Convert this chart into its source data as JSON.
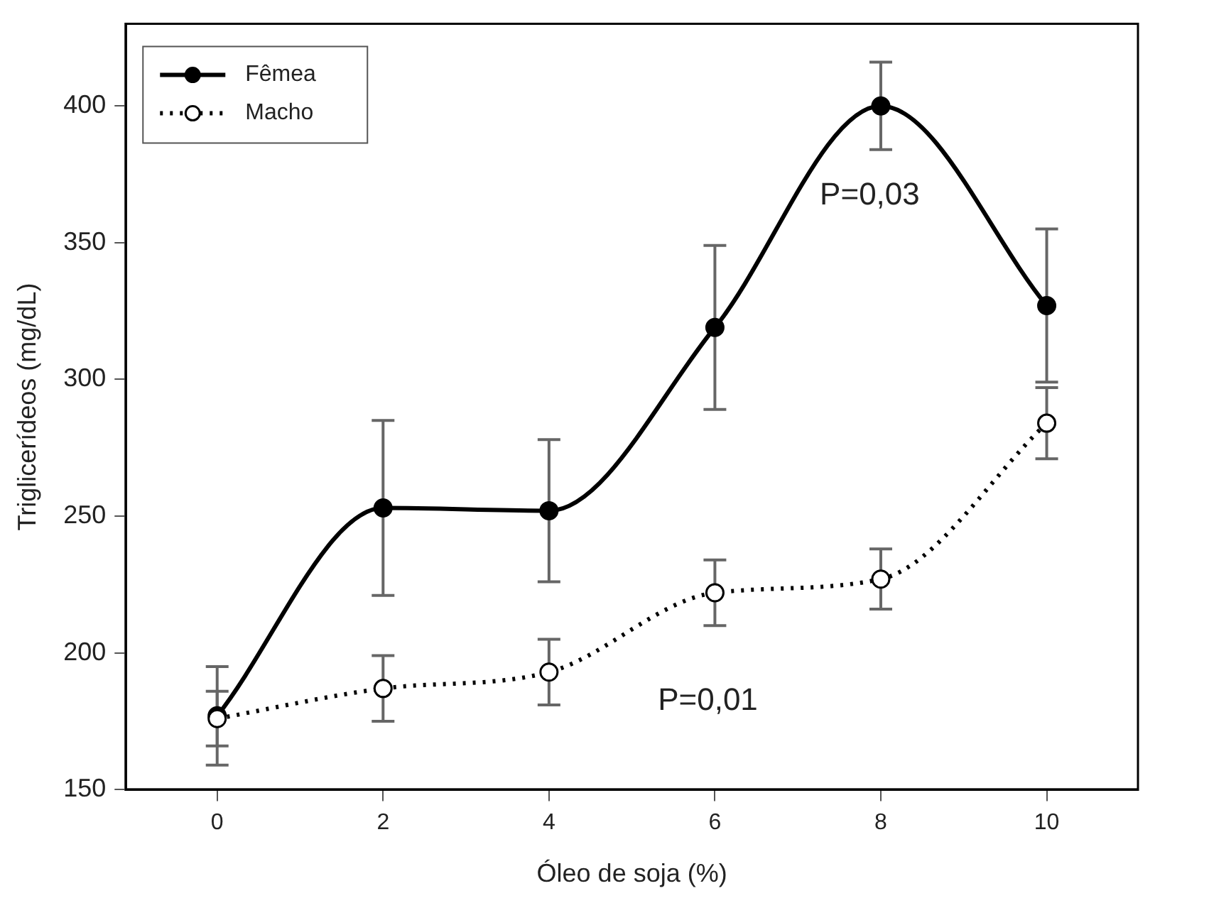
{
  "chart_data": {
    "type": "line",
    "xlabel": "Óleo de soja (%)",
    "ylabel": "Triglicerídeos (mg/dL)",
    "x": [
      0,
      2,
      4,
      6,
      8,
      10
    ],
    "series": [
      {
        "name": "Fêmea",
        "color": "#000000",
        "line_style": "solid",
        "values": [
          177,
          253,
          252,
          319,
          400,
          327
        ],
        "errors": [
          18,
          32,
          26,
          30,
          16,
          28
        ]
      },
      {
        "name": "Macho",
        "color": "#000000",
        "line_style": "dotted",
        "values": [
          176,
          187,
          193,
          222,
          227,
          284
        ],
        "errors": [
          10,
          12,
          12,
          12,
          11,
          13
        ]
      }
    ],
    "xlim": [
      -1.1,
      11.1
    ],
    "xticks": [
      0,
      2,
      4,
      6,
      8,
      10
    ],
    "ylim": [
      150,
      430
    ],
    "yticks": [
      150,
      200,
      250,
      300,
      350,
      400
    ],
    "grid": false,
    "legend": "top left",
    "marker": "circle",
    "annotations": [
      "P=0,03",
      "P=0,01"
    ]
  }
}
